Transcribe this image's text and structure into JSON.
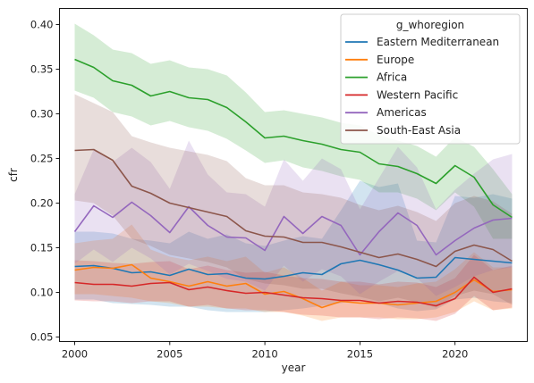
{
  "chart_data": {
    "type": "line",
    "title": "",
    "xlabel": "year",
    "ylabel": "cfr",
    "xlim": [
      1999.2,
      2023.8
    ],
    "ylim": [
      0.045,
      0.418
    ],
    "xticks": [
      2000,
      2005,
      2010,
      2015,
      2020
    ],
    "yticks": [
      0.05,
      0.1,
      0.15,
      0.2,
      0.25,
      0.3,
      0.35,
      0.4
    ],
    "ytick_labels": [
      "0.05",
      "0.10",
      "0.15",
      "0.20",
      "0.25",
      "0.30",
      "0.35",
      "0.40"
    ],
    "grid": false,
    "legend": {
      "title": "g_whoregion",
      "placement": "top-right"
    },
    "x": [
      2000,
      2001,
      2002,
      2003,
      2004,
      2005,
      2006,
      2007,
      2008,
      2009,
      2010,
      2011,
      2012,
      2013,
      2014,
      2015,
      2016,
      2017,
      2018,
      2019,
      2020,
      2021,
      2022,
      2023
    ],
    "series": [
      {
        "name": "Eastern Mediterranean",
        "color": "#1f77b4",
        "values": [
          0.129,
          0.13,
          0.127,
          0.122,
          0.123,
          0.119,
          0.126,
          0.12,
          0.121,
          0.116,
          0.115,
          0.118,
          0.122,
          0.12,
          0.132,
          0.136,
          0.131,
          0.125,
          0.116,
          0.117,
          0.139,
          0.137,
          0.135,
          0.133
        ],
        "lower": [
          0.092,
          0.092,
          0.088,
          0.087,
          0.086,
          0.084,
          0.084,
          0.08,
          0.078,
          0.078,
          0.078,
          0.08,
          0.082,
          0.085,
          0.088,
          0.092,
          0.088,
          0.082,
          0.079,
          0.081,
          0.092,
          0.094,
          0.09,
          0.088
        ],
        "upper": [
          0.168,
          0.168,
          0.166,
          0.16,
          0.158,
          0.155,
          0.168,
          0.16,
          0.165,
          0.155,
          0.152,
          0.158,
          0.163,
          0.16,
          0.192,
          0.225,
          0.218,
          0.222,
          0.158,
          0.156,
          0.208,
          0.206,
          0.21,
          0.205
        ]
      },
      {
        "name": "Europe",
        "color": "#ff7f0e",
        "values": [
          0.125,
          0.128,
          0.127,
          0.131,
          0.116,
          0.112,
          0.107,
          0.112,
          0.107,
          0.11,
          0.098,
          0.101,
          0.093,
          0.083,
          0.09,
          0.088,
          0.088,
          0.086,
          0.088,
          0.09,
          0.1,
          0.114,
          0.101,
          0.103
        ],
        "lower": [
          0.098,
          0.098,
          0.096,
          0.094,
          0.09,
          0.088,
          0.084,
          0.084,
          0.082,
          0.082,
          0.078,
          0.078,
          0.074,
          0.068,
          0.072,
          0.072,
          0.072,
          0.07,
          0.07,
          0.072,
          0.078,
          0.09,
          0.08,
          0.082
        ],
        "upper": [
          0.155,
          0.158,
          0.16,
          0.176,
          0.148,
          0.14,
          0.136,
          0.14,
          0.135,
          0.14,
          0.122,
          0.128,
          0.116,
          0.102,
          0.112,
          0.108,
          0.108,
          0.106,
          0.11,
          0.112,
          0.126,
          0.145,
          0.128,
          0.128
        ]
      },
      {
        "name": "Africa",
        "color": "#2ca02c",
        "values": [
          0.361,
          0.352,
          0.337,
          0.332,
          0.32,
          0.325,
          0.318,
          0.316,
          0.307,
          0.291,
          0.273,
          0.275,
          0.27,
          0.266,
          0.26,
          0.257,
          0.244,
          0.241,
          0.233,
          0.222,
          0.242,
          0.229,
          0.198,
          0.184
        ],
        "lower": [
          0.326,
          0.318,
          0.302,
          0.297,
          0.287,
          0.292,
          0.285,
          0.281,
          0.272,
          0.259,
          0.245,
          0.248,
          0.24,
          0.236,
          0.23,
          0.226,
          0.212,
          0.212,
          0.205,
          0.192,
          0.212,
          0.196,
          0.16,
          0.16
        ],
        "upper": [
          0.401,
          0.388,
          0.372,
          0.368,
          0.356,
          0.36,
          0.352,
          0.35,
          0.343,
          0.324,
          0.302,
          0.304,
          0.3,
          0.296,
          0.29,
          0.287,
          0.276,
          0.27,
          0.264,
          0.252,
          0.274,
          0.263,
          0.238,
          0.21
        ]
      },
      {
        "name": "Western Pacific",
        "color": "#d62728",
        "values": [
          0.111,
          0.109,
          0.109,
          0.107,
          0.11,
          0.111,
          0.103,
          0.106,
          0.102,
          0.099,
          0.1,
          0.097,
          0.094,
          0.093,
          0.091,
          0.091,
          0.088,
          0.09,
          0.089,
          0.085,
          0.093,
          0.117,
          0.1,
          0.104
        ],
        "lower": [
          0.091,
          0.09,
          0.09,
          0.088,
          0.09,
          0.09,
          0.084,
          0.086,
          0.082,
          0.08,
          0.08,
          0.078,
          0.075,
          0.074,
          0.072,
          0.072,
          0.07,
          0.072,
          0.071,
          0.068,
          0.076,
          0.096,
          0.08,
          0.083
        ],
        "upper": [
          0.136,
          0.135,
          0.133,
          0.132,
          0.134,
          0.135,
          0.126,
          0.13,
          0.125,
          0.122,
          0.123,
          0.119,
          0.116,
          0.115,
          0.112,
          0.112,
          0.109,
          0.112,
          0.111,
          0.106,
          0.116,
          0.142,
          0.125,
          0.13
        ]
      },
      {
        "name": "Americas",
        "color": "#9467bd",
        "values": [
          0.168,
          0.197,
          0.184,
          0.201,
          0.186,
          0.167,
          0.196,
          0.175,
          0.162,
          0.161,
          0.147,
          0.185,
          0.166,
          0.185,
          0.175,
          0.142,
          0.168,
          0.189,
          0.175,
          0.142,
          0.158,
          0.172,
          0.181,
          0.183
        ],
        "lower": [
          0.132,
          0.148,
          0.134,
          0.15,
          0.138,
          0.12,
          0.132,
          0.124,
          0.115,
          0.112,
          0.102,
          0.13,
          0.112,
          0.126,
          0.118,
          0.098,
          0.112,
          0.124,
          0.116,
          0.096,
          0.106,
          0.118,
          0.125,
          0.128
        ],
        "upper": [
          0.21,
          0.26,
          0.246,
          0.262,
          0.246,
          0.216,
          0.27,
          0.232,
          0.212,
          0.21,
          0.196,
          0.249,
          0.225,
          0.25,
          0.238,
          0.193,
          0.228,
          0.263,
          0.24,
          0.193,
          0.215,
          0.233,
          0.249,
          0.255
        ]
      },
      {
        "name": "South-East Asia",
        "color": "#8c564b",
        "values": [
          0.259,
          0.26,
          0.248,
          0.219,
          0.211,
          0.2,
          0.195,
          0.19,
          0.185,
          0.169,
          0.163,
          0.162,
          0.156,
          0.156,
          0.151,
          0.145,
          0.139,
          0.143,
          0.137,
          0.129,
          0.146,
          0.153,
          0.148,
          0.135
        ],
        "lower": [
          0.203,
          0.2,
          0.186,
          0.16,
          0.152,
          0.142,
          0.138,
          0.134,
          0.128,
          0.115,
          0.11,
          0.108,
          0.104,
          0.104,
          0.099,
          0.095,
          0.09,
          0.094,
          0.089,
          0.083,
          0.096,
          0.102,
          0.098,
          0.086
        ],
        "upper": [
          0.322,
          0.312,
          0.302,
          0.275,
          0.268,
          0.262,
          0.258,
          0.254,
          0.247,
          0.228,
          0.22,
          0.22,
          0.212,
          0.21,
          0.206,
          0.198,
          0.192,
          0.197,
          0.19,
          0.18,
          0.2,
          0.208,
          0.202,
          0.188
        ]
      }
    ]
  }
}
